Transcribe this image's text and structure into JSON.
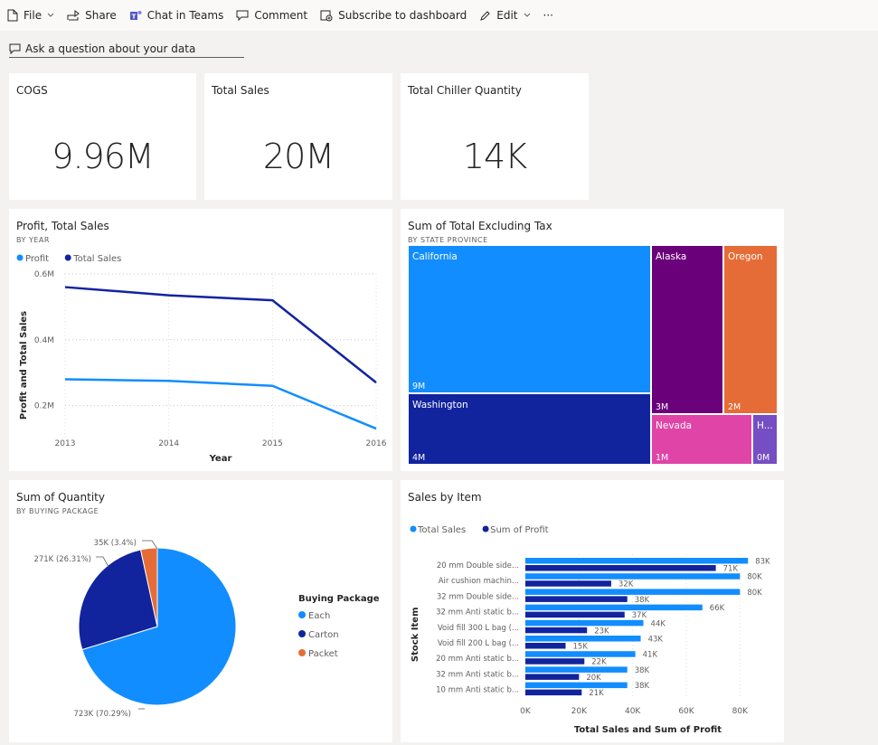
{
  "toolbar": {
    "file": "File",
    "share": "Share",
    "chat": "Chat in Teams",
    "comment": "Comment",
    "subscribe": "Subscribe to dashboard",
    "edit": "Edit",
    "more": "···"
  },
  "qa": {
    "placeholder": "Ask a question about your data"
  },
  "kpis": [
    {
      "title": "COGS",
      "value": "9.96M"
    },
    {
      "title": "Total Sales",
      "value": "20M"
    },
    {
      "title": "Total Chiller Quantity",
      "value": "14K"
    }
  ],
  "chart_data": [
    {
      "type": "line",
      "title": "Profit, Total Sales",
      "subtitle": "BY YEAR",
      "xlabel": "Year",
      "ylabel": "Profit and Total Sales",
      "x": [
        "2013",
        "2014",
        "2015",
        "2016"
      ],
      "yticks": [
        "0.2M",
        "0.4M",
        "0.6M"
      ],
      "ylim": [
        0.1,
        0.6
      ],
      "legend": "top-left",
      "grid": true,
      "series": [
        {
          "name": "Profit",
          "color": "#118dff",
          "values": [
            0.28,
            0.275,
            0.26,
            0.13
          ]
        },
        {
          "name": "Total Sales",
          "color": "#12239e",
          "values": [
            0.56,
            0.535,
            0.52,
            0.27
          ]
        }
      ]
    },
    {
      "type": "treemap",
      "title": "Sum of Total Excluding Tax",
      "subtitle": "BY STATE PROVINCE",
      "items": [
        {
          "name": "California",
          "value_label": "9M",
          "color": "#118dff"
        },
        {
          "name": "Washington",
          "value_label": "4M",
          "color": "#12239e"
        },
        {
          "name": "Alaska",
          "value_label": "3M",
          "color": "#6b007b"
        },
        {
          "name": "Oregon",
          "value_label": "2M",
          "color": "#e66c37"
        },
        {
          "name": "Nevada",
          "value_label": "1M",
          "color": "#e044a7"
        },
        {
          "name": "H...",
          "value_label": "0M",
          "color": "#744ec2"
        }
      ]
    },
    {
      "type": "pie",
      "title": "Sum of Quantity",
      "subtitle": "BY BUYING PACKAGE",
      "legend_title": "Buying Package",
      "slices": [
        {
          "name": "Each",
          "value": 723,
          "label": "723K (70.29%)",
          "color": "#118dff"
        },
        {
          "name": "Carton",
          "value": 271,
          "label": "271K (26.31%)",
          "color": "#12239e"
        },
        {
          "name": "Packet",
          "value": 35,
          "label": "35K (3.4%)",
          "color": "#e66c37"
        }
      ]
    },
    {
      "type": "bar",
      "orientation": "horizontal",
      "title": "Sales by Item",
      "xlabel": "Total Sales and Sum of Profit",
      "ylabel": "Stock Item",
      "xticks": [
        "0K",
        "20K",
        "40K",
        "60K",
        "80K"
      ],
      "xlim": [
        0,
        90
      ],
      "categories": [
        "20 mm Double side...",
        "Air cushion machin...",
        "32 mm Double side...",
        "32 mm Anti static b...",
        "Void fill 300 L bag (...",
        "Void fill 200 L bag (...",
        "20 mm Anti static b...",
        "32 mm Anti static b...",
        "10 mm Anti static b..."
      ],
      "series": [
        {
          "name": "Total Sales",
          "color": "#118dff",
          "values": [
            83,
            80,
            80,
            66,
            44,
            43,
            41,
            38,
            38
          ],
          "labels": [
            "83K",
            "80K",
            "80K",
            "66K",
            "44K",
            "43K",
            "41K",
            "38K",
            "38K"
          ]
        },
        {
          "name": "Sum of Profit",
          "color": "#12239e",
          "values": [
            71,
            32,
            38,
            37,
            23,
            15,
            22,
            20,
            21
          ],
          "labels": [
            "71K",
            "32K",
            "38K",
            "37K",
            "23K",
            "15K",
            "22K",
            "20K",
            "21K"
          ]
        }
      ]
    }
  ]
}
